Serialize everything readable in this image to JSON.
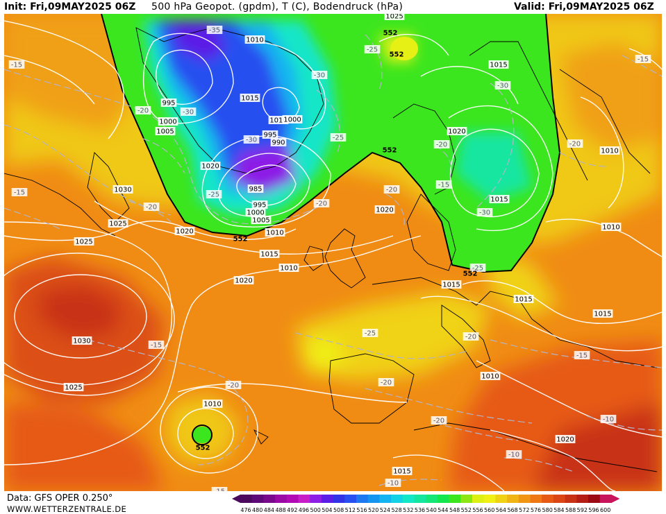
{
  "header": {
    "init": "Init: Fri,09MAY2025 06Z",
    "title": "500 hPa Geopot. (gpdm), T (C), Bodendruck (hPa)",
    "valid": "Valid: Fri,09MAY2025 06Z"
  },
  "footer": {
    "source": "Data: GFS OPER 0.250°",
    "site": "WWW.WETTERZENTRALE.DE"
  },
  "colorbar": {
    "ticks": [
      "476",
      "480",
      "484",
      "488",
      "492",
      "496",
      "500",
      "504",
      "508",
      "512",
      "516",
      "520",
      "524",
      "528",
      "532",
      "536",
      "540",
      "544",
      "548",
      "552",
      "556",
      "560",
      "564",
      "568",
      "572",
      "576",
      "580",
      "584",
      "588",
      "592",
      "596",
      "600"
    ],
    "colors": [
      "#4b0a5e",
      "#5e0a78",
      "#7a0a8c",
      "#9a0aa5",
      "#b30ab8",
      "#c81ec8",
      "#8c1ee6",
      "#5a1ee6",
      "#3232e6",
      "#2850f0",
      "#1e78f0",
      "#1496f0",
      "#14b4f0",
      "#14d2e6",
      "#14e6c8",
      "#14e6a0",
      "#14e678",
      "#14e650",
      "#3ce61e",
      "#8ce614",
      "#dcf014",
      "#f0f014",
      "#f0d214",
      "#f0b414",
      "#f09614",
      "#f07814",
      "#e65a14",
      "#dc4614",
      "#c83214",
      "#b41e14",
      "#9c0a14",
      "#c8145a"
    ]
  },
  "pressure_labels": [
    "1025",
    "1010",
    "995",
    "1000",
    "1005",
    "1015",
    "1010",
    "1000",
    "995",
    "990",
    "1020",
    "985",
    "995",
    "1000",
    "1005",
    "1010",
    "1020",
    "1015",
    "1020",
    "1030",
    "1025",
    "1025",
    "1030",
    "1025",
    "1020",
    "1015",
    "1010",
    "1020",
    "1015",
    "1015",
    "1015",
    "1010",
    "1015",
    "1010",
    "1010",
    "1010",
    "1020",
    "1015"
  ],
  "temp_labels": [
    "-35",
    "-25",
    "-15",
    "-20",
    "-30",
    "-30",
    "-25",
    "-20",
    "-30",
    "-25",
    "-20",
    "-15",
    "-20",
    "-20",
    "-30",
    "-25",
    "-20",
    "-30",
    "-15",
    "-20",
    "-25",
    "-20",
    "-15",
    "-20",
    "-15",
    "-20",
    "-15",
    "-10",
    "-10",
    "-10",
    "-15"
  ],
  "height_labels": [
    "552",
    "552",
    "552",
    "552",
    "552",
    "552"
  ]
}
